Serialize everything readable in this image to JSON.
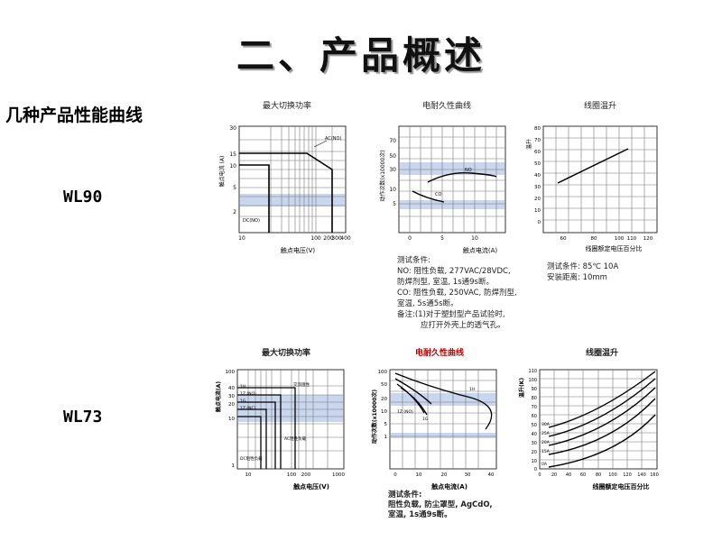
{
  "page": {
    "title": "二、产品概述",
    "section_label": "几种产品性能曲线"
  },
  "models": [
    {
      "name": "WL90",
      "panels": [
        {
          "title": "最大切换功率",
          "xlabel": "触点电压(V)",
          "ylabel": "触点电流 (A)",
          "xticks": [
            "10",
            "100",
            "200",
            "300",
            "400"
          ],
          "yticks": [
            "30",
            "15",
            "10",
            "5",
            "2"
          ],
          "annotations": [
            "AC(NO)",
            "DC(NO)"
          ]
        },
        {
          "title": "电耐久性曲线",
          "xlabel": "触点电流(A)",
          "ylabel": "动作次数(x10000次)",
          "xticks": [
            "0",
            "5",
            "10"
          ],
          "yticks": [
            "70",
            "50",
            "30",
            "10",
            "5"
          ],
          "annotations": [
            "NO",
            "CO"
          ],
          "notes": [
            "测试条件:",
            "NO: 阻性负载, 277VAC/28VDC,",
            "防焊剂型, 室温, 1s通9s断。",
            "CO: 阻性负载, 250VAC, 防焊剂型,",
            "室温, 5s通5s断。",
            "备注:(1)对于塑封型产品试验时,",
            "应打开外壳上的透气孔。"
          ]
        },
        {
          "title": "线圈温升",
          "xlabel": "线圈额定电压百分比",
          "ylabel": "温升",
          "xticks": [
            "60",
            "80",
            "100",
            "110",
            "120"
          ],
          "yticks": [
            "80",
            "70",
            "60",
            "50",
            "40",
            "30",
            "20",
            "10",
            "0"
          ],
          "notes": [
            "测试条件: 85℃ 10A",
            "安装距离: 10mm"
          ]
        }
      ]
    },
    {
      "name": "WL73",
      "panels": [
        {
          "title": "最大切换功率",
          "xlabel": "触点电压(V)",
          "ylabel": "触点电流(A)",
          "xticks": [
            "10",
            "100",
            "200",
            "1000"
          ],
          "yticks": [
            "100",
            "40",
            "30",
            "20",
            "10",
            "1"
          ],
          "annotations": [
            "1H",
            "1Z (NO)",
            "1G",
            "1Z (NC)",
            "交流阻性",
            "AC阻性负载",
            "DC阻性负载"
          ]
        },
        {
          "title": "电耐久性曲线",
          "xlabel": "触点电流(A)",
          "ylabel": "动作次数(x10000次)",
          "xticks": [
            "0",
            "10",
            "20",
            "30",
            "40"
          ],
          "yticks": [
            "100",
            "50",
            "20",
            "10",
            "5",
            "1"
          ],
          "annotations": [
            "1H",
            "1Z (NO)",
            "1G"
          ],
          "notes": [
            "测试条件:",
            "阻性负载, 防尘罩型, AgCdO,",
            "室温, 1s通9s断。"
          ]
        },
        {
          "title": "线圈温升",
          "xlabel": "线圈额定电压百分比",
          "ylabel": "温升(K)",
          "xticks": [
            "0",
            "20",
            "40",
            "60",
            "80",
            "100",
            "120",
            "140",
            "160"
          ],
          "yticks": [
            "110",
            "100",
            "90",
            "80",
            "70",
            "60",
            "50",
            "40",
            "30",
            "20",
            "10",
            "0"
          ],
          "annotations": [
            "30A",
            "25A",
            "20A",
            "15A",
            "0A"
          ]
        }
      ]
    }
  ]
}
